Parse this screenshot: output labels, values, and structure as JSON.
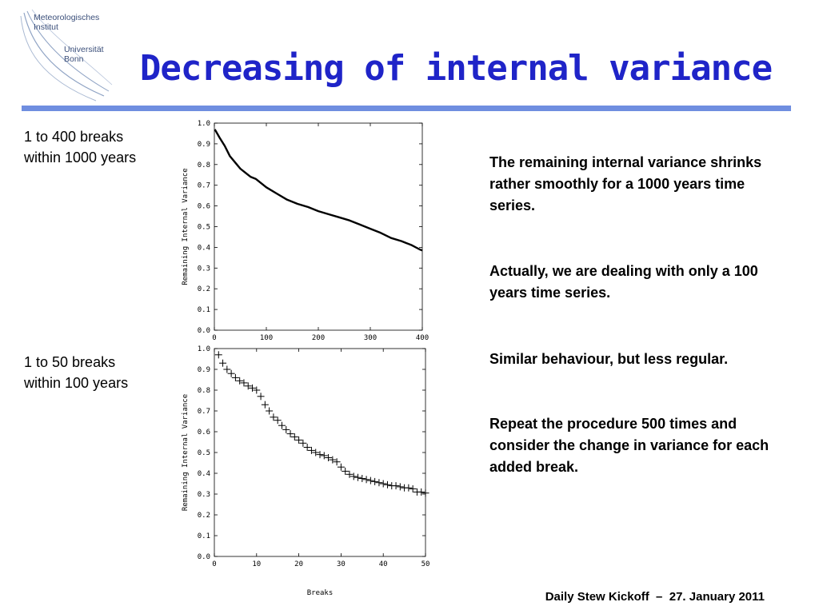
{
  "slide": {
    "title": "Decreasing of internal variance",
    "logo": {
      "line1": "Meteorologisches",
      "line2": "Institut",
      "line3": "Universität",
      "line4": "Bonn"
    },
    "left_labels": [
      {
        "line1": "1 to 400 breaks",
        "line2": "within 1000 years"
      },
      {
        "line1": "1 to 50 breaks",
        "line2": "within 100 years"
      }
    ],
    "right_paragraphs": [
      "The remaining internal variance shrinks rather smoothly for a 1000 years time series.",
      "Actually, we are dealing with only a 100 years time series.",
      "Similar behaviour, but less regular.",
      "Repeat the procedure 500 times and consider the change in variance for each added break."
    ],
    "footer": "Daily Stew Kickoff  –  27. January 2011"
  },
  "chart_data": [
    {
      "type": "line",
      "ylabel": "Remaining Internal Variance",
      "xlabel": "",
      "xlim": [
        0,
        400
      ],
      "ylim": [
        0.0,
        1.0
      ],
      "xticks": [
        0,
        100,
        200,
        300,
        400
      ],
      "yticks": [
        0.0,
        0.1,
        0.2,
        0.3,
        0.4,
        0.5,
        0.6,
        0.7,
        0.8,
        0.9,
        1.0
      ],
      "series": [
        {
          "x": [
            1,
            10,
            20,
            30,
            40,
            50,
            60,
            70,
            80,
            100,
            120,
            140,
            160,
            180,
            200,
            220,
            240,
            260,
            280,
            300,
            320,
            340,
            360,
            380,
            395,
            400
          ],
          "y": [
            0.97,
            0.93,
            0.89,
            0.84,
            0.81,
            0.78,
            0.76,
            0.74,
            0.73,
            0.69,
            0.66,
            0.63,
            0.61,
            0.595,
            0.575,
            0.56,
            0.545,
            0.53,
            0.51,
            0.49,
            0.47,
            0.445,
            0.43,
            0.41,
            0.39,
            0.385
          ]
        }
      ]
    },
    {
      "type": "scatter",
      "ylabel": "Remaining Internal Variance",
      "xlabel": "Breaks",
      "xlim": [
        0,
        50
      ],
      "ylim": [
        0.0,
        1.0
      ],
      "xticks": [
        0,
        10,
        20,
        30,
        40,
        50
      ],
      "yticks": [
        0.0,
        0.1,
        0.2,
        0.3,
        0.4,
        0.5,
        0.6,
        0.7,
        0.8,
        0.9,
        1.0
      ],
      "series": [
        {
          "x": [
            1,
            2,
            3,
            4,
            5,
            6,
            7,
            8,
            9,
            10,
            11,
            12,
            13,
            14,
            15,
            16,
            17,
            18,
            19,
            20,
            21,
            22,
            23,
            24,
            25,
            26,
            27,
            28,
            29,
            30,
            31,
            32,
            33,
            34,
            35,
            36,
            37,
            38,
            39,
            40,
            41,
            42,
            43,
            44,
            45,
            46,
            47,
            48,
            49,
            50
          ],
          "y": [
            0.97,
            0.93,
            0.9,
            0.88,
            0.86,
            0.845,
            0.835,
            0.82,
            0.81,
            0.8,
            0.77,
            0.73,
            0.7,
            0.67,
            0.655,
            0.63,
            0.61,
            0.59,
            0.575,
            0.56,
            0.545,
            0.525,
            0.51,
            0.5,
            0.49,
            0.485,
            0.475,
            0.465,
            0.455,
            0.43,
            0.41,
            0.395,
            0.385,
            0.38,
            0.375,
            0.37,
            0.365,
            0.36,
            0.355,
            0.35,
            0.345,
            0.34,
            0.34,
            0.335,
            0.33,
            0.33,
            0.325,
            0.31,
            0.31,
            0.305
          ]
        }
      ]
    }
  ]
}
